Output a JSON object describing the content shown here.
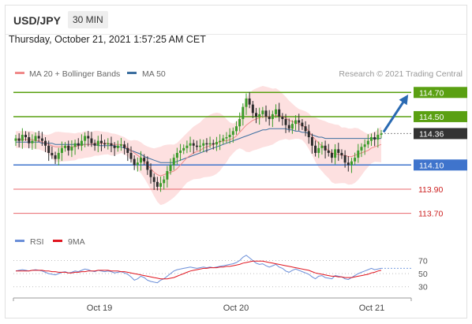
{
  "header": {
    "symbol": "USD/JPY",
    "timeframe": "30 MIN"
  },
  "datetime": "Thursday, October 21, 2021 1:57:25 AM CET",
  "colors": {
    "support_resistance": "#5aa012",
    "support_blue": "#3f74cc",
    "support_red": "#e8676b",
    "last_price": "#333333",
    "ma20": "#f08a8a",
    "bollinger_fill": "#fde0e0",
    "ma50": "#3c6fa0",
    "up_candle": "#3c9c2a",
    "down_candle": "#2b2b2b",
    "rsi": "#6a8ed8",
    "rsi_ma": "#e0141e",
    "arrow": "#2a6ab2"
  },
  "legend": {
    "ma20": "MA 20 + Bollinger Bands",
    "ma50": "MA 50",
    "credit": "Research © 2021 Trading Central"
  },
  "rsi_legend": {
    "rsi": "RSI",
    "ma": "9MA"
  },
  "chart_data": [
    {
      "type": "candlestick",
      "title": "USD/JPY",
      "timeframe": "30 MIN",
      "ylim": [
        113.6,
        114.78
      ],
      "x_ticks": [
        "Oct 19",
        "Oct 20",
        "Oct 21"
      ],
      "levels": [
        {
          "value": 114.7,
          "label": "114.70",
          "style": "resistance",
          "color": "#5aa012"
        },
        {
          "value": 114.5,
          "label": "114.50",
          "style": "resistance",
          "color": "#5aa012"
        },
        {
          "value": 114.36,
          "label": "114.36",
          "style": "last",
          "color": "#333333"
        },
        {
          "value": 114.1,
          "label": "114.10",
          "style": "support",
          "color": "#3f74cc"
        },
        {
          "value": 113.9,
          "label": "113.90",
          "style": "support-weak",
          "color": "#e8676b"
        },
        {
          "value": 113.7,
          "label": "113.70",
          "style": "support-weak",
          "color": "#e8676b"
        }
      ],
      "last_price": 114.36,
      "target": 114.7,
      "series": [
        {
          "name": "USD/JPY",
          "close": [
            114.32,
            114.3,
            114.35,
            114.33,
            114.28,
            114.3,
            114.34,
            114.32,
            114.3,
            114.26,
            114.2,
            114.18,
            114.15,
            114.2,
            114.24,
            114.26,
            114.22,
            114.25,
            114.28,
            114.26,
            114.3,
            114.34,
            114.32,
            114.28,
            114.26,
            114.3,
            114.28,
            114.27,
            114.28,
            114.26,
            114.24,
            114.26,
            114.27,
            114.24,
            114.2,
            114.15,
            114.1,
            114.12,
            114.16,
            114.13,
            114.06,
            114.0,
            113.96,
            113.92,
            113.95,
            113.98,
            114.05,
            114.1,
            114.16,
            114.2,
            114.22,
            114.24,
            114.26,
            114.28,
            114.26,
            114.25,
            114.26,
            114.28,
            114.27,
            114.28,
            114.27,
            114.29,
            114.3,
            114.32,
            114.33,
            114.35,
            114.38,
            114.42,
            114.48,
            114.58,
            114.65,
            114.6,
            114.53,
            114.5,
            114.52,
            114.55,
            114.5,
            114.48,
            114.52,
            114.56,
            114.5,
            114.48,
            114.43,
            114.4,
            114.44,
            114.47,
            114.45,
            114.42,
            114.38,
            114.33,
            114.26,
            114.2,
            114.24,
            114.26,
            114.22,
            114.2,
            114.16,
            114.23,
            114.2,
            114.18,
            114.12,
            114.1,
            114.13,
            114.16,
            114.22,
            114.25,
            114.27,
            114.3,
            114.33,
            114.31,
            114.35,
            114.36
          ]
        },
        {
          "name": "MA 20",
          "values": [
            114.31,
            114.31,
            114.31,
            114.31,
            114.31,
            114.31,
            114.3,
            114.3,
            114.29,
            114.28,
            114.27,
            114.26,
            114.25,
            114.25,
            114.25,
            114.25,
            114.25,
            114.25,
            114.25,
            114.26,
            114.26,
            114.27,
            114.27,
            114.27,
            114.28,
            114.28,
            114.28,
            114.28,
            114.28,
            114.27,
            114.27,
            114.27,
            114.27,
            114.26,
            114.24,
            114.22,
            114.2,
            114.18,
            114.16,
            114.13,
            114.1,
            114.07,
            114.04,
            114.02,
            114.01,
            114.02,
            114.03,
            114.04,
            114.05,
            114.07,
            114.1,
            114.13,
            114.16,
            114.18,
            114.2,
            114.21,
            114.22,
            114.24,
            114.25,
            114.26,
            114.27,
            114.28,
            114.29,
            114.3,
            114.3,
            114.31,
            114.32,
            114.34,
            114.37,
            114.4,
            114.43,
            114.45,
            114.47,
            114.48,
            114.49,
            114.5,
            114.5,
            114.5,
            114.5,
            114.51,
            114.51,
            114.5,
            114.49,
            114.47,
            114.46,
            114.45,
            114.44,
            114.43,
            114.41,
            114.38,
            114.34,
            114.31,
            114.28,
            114.26,
            114.24,
            114.22,
            114.2,
            114.19,
            114.19,
            114.18,
            114.18,
            114.17,
            114.17,
            114.18,
            114.19,
            114.2,
            114.21,
            114.22,
            114.24,
            114.25,
            114.26,
            114.27
          ]
        },
        {
          "name": "MA 50",
          "values": [
            114.29,
            114.29,
            114.29,
            114.29,
            114.29,
            114.29,
            114.29,
            114.29,
            114.28,
            114.28,
            114.28,
            114.28,
            114.27,
            114.27,
            114.27,
            114.27,
            114.27,
            114.27,
            114.27,
            114.27,
            114.27,
            114.27,
            114.27,
            114.27,
            114.27,
            114.26,
            114.26,
            114.26,
            114.26,
            114.26,
            114.26,
            114.25,
            114.25,
            114.24,
            114.23,
            114.22,
            114.21,
            114.2,
            114.19,
            114.17,
            114.16,
            114.15,
            114.14,
            114.13,
            114.12,
            114.12,
            114.12,
            114.12,
            114.12,
            114.13,
            114.14,
            114.15,
            114.16,
            114.17,
            114.18,
            114.19,
            114.2,
            114.21,
            114.22,
            114.23,
            114.24,
            114.25,
            114.26,
            114.27,
            114.28,
            114.29,
            114.3,
            114.31,
            114.32,
            114.33,
            114.34,
            114.35,
            114.36,
            114.37,
            114.38,
            114.39,
            114.39,
            114.4,
            114.4,
            114.4,
            114.4,
            114.4,
            114.4,
            114.39,
            114.39,
            114.38,
            114.38,
            114.37,
            114.37,
            114.36,
            114.35,
            114.34,
            114.33,
            114.33,
            114.32,
            114.32,
            114.32,
            114.32,
            114.32,
            114.32,
            114.32,
            114.32,
            114.32,
            114.32,
            114.32,
            114.32,
            114.32,
            114.32,
            114.32,
            114.32,
            114.32,
            114.32
          ]
        }
      ]
    },
    {
      "type": "line",
      "ylim": [
        20,
        85
      ],
      "y_ticks": [
        70,
        50,
        30
      ],
      "x_ticks": [
        "Oct 19",
        "Oct 20",
        "Oct 21"
      ],
      "series": [
        {
          "name": "RSI",
          "values": [
            54,
            55,
            56,
            55,
            54,
            55,
            56,
            55,
            54,
            52,
            50,
            49,
            48,
            50,
            52,
            53,
            51,
            52,
            54,
            53,
            55,
            57,
            56,
            54,
            53,
            55,
            54,
            53,
            54,
            53,
            51,
            52,
            53,
            51,
            49,
            45,
            40,
            42,
            46,
            44,
            40,
            38,
            37,
            36,
            40,
            42,
            46,
            50,
            54,
            56,
            57,
            58,
            59,
            60,
            59,
            58,
            59,
            60,
            59,
            60,
            59,
            60,
            61,
            62,
            63,
            64,
            65,
            67,
            70,
            75,
            78,
            74,
            70,
            66,
            64,
            65,
            62,
            60,
            62,
            64,
            60,
            58,
            54,
            52,
            55,
            57,
            55,
            53,
            51,
            49,
            45,
            42,
            46,
            47,
            44,
            43,
            42,
            47,
            46,
            45,
            42,
            41,
            44,
            47,
            50,
            52,
            54,
            56,
            58,
            56,
            57,
            58
          ]
        },
        {
          "name": "9MA",
          "values": [
            54,
            54,
            54,
            54,
            54,
            55,
            55,
            55,
            55,
            54,
            54,
            53,
            53,
            52,
            52,
            52,
            51,
            51,
            52,
            52,
            53,
            53,
            54,
            54,
            54,
            55,
            55,
            55,
            55,
            54,
            54,
            54,
            53,
            53,
            52,
            51,
            50,
            49,
            48,
            47,
            46,
            45,
            44,
            43,
            42,
            42,
            42,
            43,
            44,
            46,
            48,
            50,
            52,
            54,
            55,
            56,
            57,
            58,
            58,
            59,
            59,
            59,
            60,
            60,
            61,
            61,
            62,
            63,
            64,
            66,
            67,
            68,
            69,
            69,
            69,
            69,
            68,
            67,
            66,
            65,
            64,
            63,
            62,
            61,
            60,
            59,
            58,
            57,
            56,
            55,
            53,
            51,
            50,
            49,
            48,
            47,
            46,
            46,
            45,
            45,
            44,
            44,
            44,
            45,
            46,
            47,
            48,
            49,
            51,
            52,
            54,
            55
          ]
        }
      ]
    }
  ]
}
